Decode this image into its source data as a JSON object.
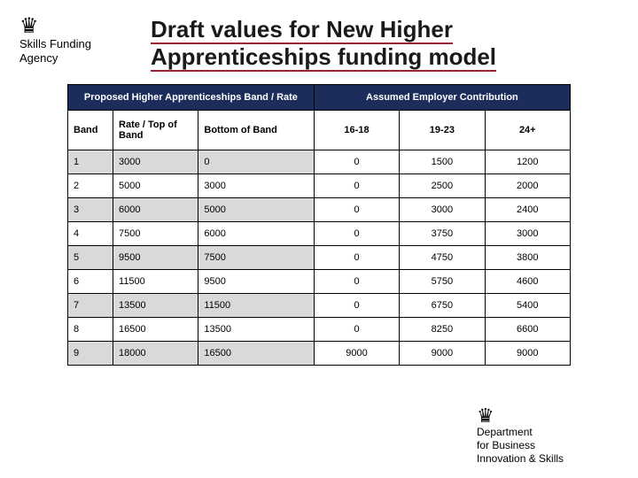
{
  "header": {
    "logo_left_line1": "Skills Funding",
    "logo_left_line2": "Agency",
    "title_line1": "Draft values for New Higher",
    "title_line2": "Apprenticeships funding model"
  },
  "table": {
    "group_left": "Proposed Higher Apprenticeships Band / Rate",
    "group_right": "Assumed Employer Contribution",
    "cols": {
      "band": "Band",
      "top": "Rate / Top of Band",
      "bottom": "Bottom of Band",
      "a1": "16-18",
      "a2": "19-23",
      "a3": "24+"
    },
    "rows": [
      {
        "band": "1",
        "top": "3000",
        "bottom": "0",
        "a1": "0",
        "a2": "1500",
        "a3": "1200",
        "shaded": true
      },
      {
        "band": "2",
        "top": "5000",
        "bottom": "3000",
        "a1": "0",
        "a2": "2500",
        "a3": "2000",
        "shaded": false
      },
      {
        "band": "3",
        "top": "6000",
        "bottom": "5000",
        "a1": "0",
        "a2": "3000",
        "a3": "2400",
        "shaded": true
      },
      {
        "band": "4",
        "top": "7500",
        "bottom": "6000",
        "a1": "0",
        "a2": "3750",
        "a3": "3000",
        "shaded": false
      },
      {
        "band": "5",
        "top": "9500",
        "bottom": "7500",
        "a1": "0",
        "a2": "4750",
        "a3": "3800",
        "shaded": true
      },
      {
        "band": "6",
        "top": "11500",
        "bottom": "9500",
        "a1": "0",
        "a2": "5750",
        "a3": "4600",
        "shaded": false
      },
      {
        "band": "7",
        "top": "13500",
        "bottom": "11500",
        "a1": "0",
        "a2": "6750",
        "a3": "5400",
        "shaded": true
      },
      {
        "band": "8",
        "top": "16500",
        "bottom": "13500",
        "a1": "0",
        "a2": "8250",
        "a3": "6600",
        "shaded": false
      },
      {
        "band": "9",
        "top": "18000",
        "bottom": "16500",
        "a1": "9000",
        "a2": "9000",
        "a3": "9000",
        "shaded": true
      }
    ]
  },
  "footer": {
    "line1": "Department",
    "line2": "for Business",
    "line3": "Innovation & Skills"
  }
}
